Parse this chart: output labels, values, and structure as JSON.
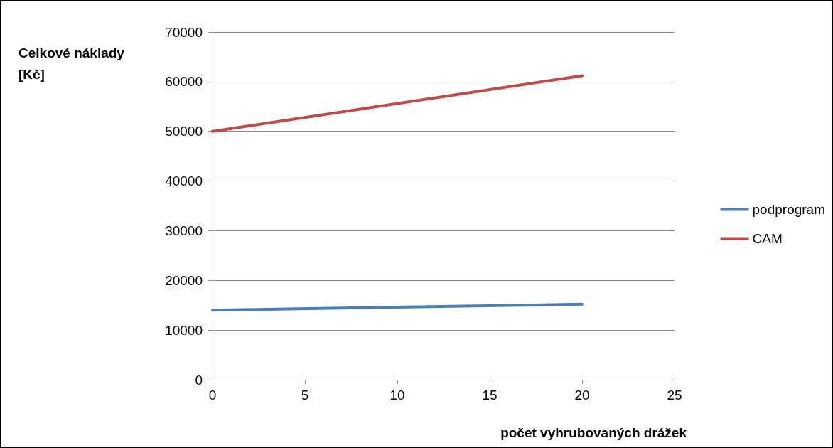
{
  "chart_data": {
    "type": "line",
    "xlabel": "počet vyhrubovaných drážek",
    "ylabel": "Celkové náklady [Kč]",
    "x": [
      0,
      20
    ],
    "series": [
      {
        "name": "podprogram",
        "color": "#4a7ebb",
        "values": [
          14000,
          15200
        ]
      },
      {
        "name": "CAM",
        "color": "#be4b48",
        "values": [
          50000,
          61200
        ]
      }
    ],
    "xlim": [
      0,
      25
    ],
    "xticks": [
      0,
      5,
      10,
      15,
      20,
      25
    ],
    "ylim": [
      0,
      70000
    ],
    "yticks": [
      0,
      10000,
      20000,
      30000,
      40000,
      50000,
      60000,
      70000
    ],
    "grid": "y",
    "legend": "right",
    "marker": "none",
    "line_style": "solid"
  }
}
